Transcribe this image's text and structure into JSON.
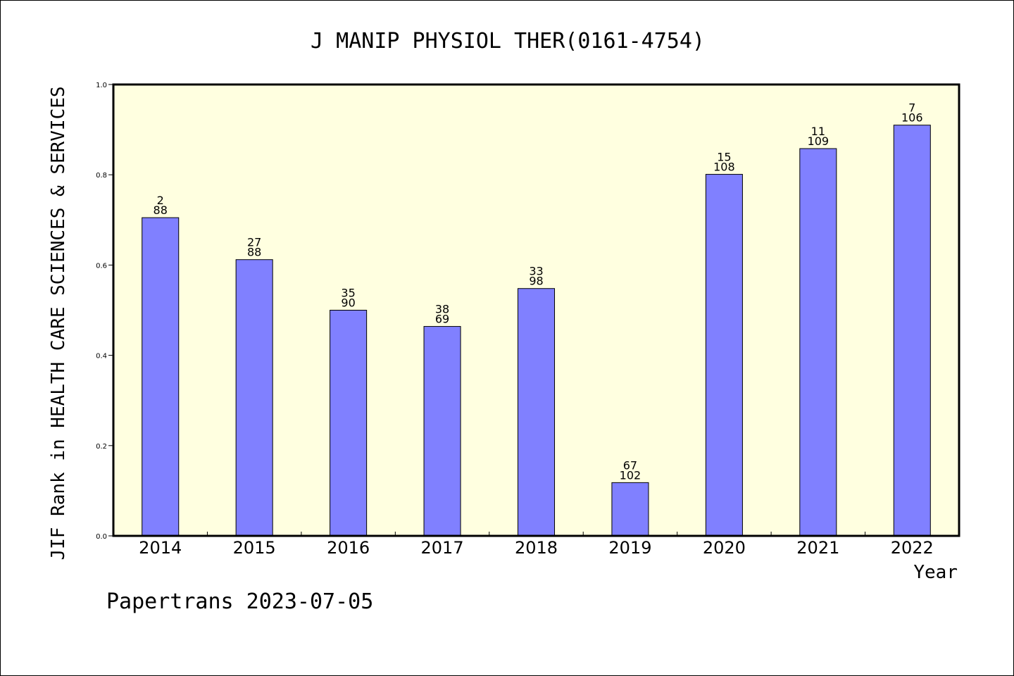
{
  "chart_data": {
    "type": "bar",
    "title": "J MANIP PHYSIOL THER(0161-4754)",
    "xlabel": "Year",
    "ylabel": "JIF Rank in HEALTH CARE SCIENCES & SERVICES",
    "ylim": [
      0,
      1.0
    ],
    "yticks": [
      "0.0",
      "0.2",
      "0.4",
      "0.6",
      "0.8",
      "1.0"
    ],
    "categories": [
      "2014",
      "2015",
      "2016",
      "2017",
      "2018",
      "2019",
      "2020",
      "2021",
      "2022"
    ],
    "values": [
      0.705,
      0.612,
      0.5,
      0.464,
      0.548,
      0.118,
      0.801,
      0.858,
      0.91
    ],
    "rank_labels": [
      [
        "2",
        "88"
      ],
      [
        "27",
        "88"
      ],
      [
        "35",
        "90"
      ],
      [
        "38",
        "69"
      ],
      [
        "33",
        "98"
      ],
      [
        "67",
        "102"
      ],
      [
        "15",
        "108"
      ],
      [
        "11",
        "109"
      ],
      [
        "7",
        "106"
      ]
    ],
    "grid": false,
    "colors": {
      "bar": "#8080ff",
      "plot_background": "#ffffe0",
      "axis": "#000000"
    }
  },
  "footer": "Papertrans 2023-07-05"
}
